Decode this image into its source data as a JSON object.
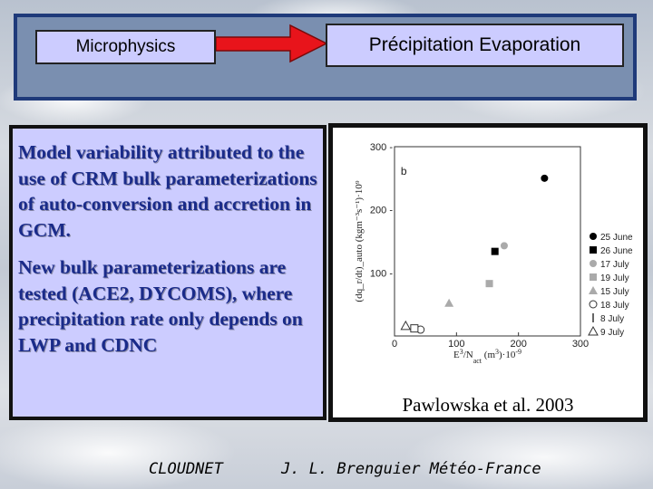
{
  "header": {
    "left_box": "Microphysics",
    "right_box": "Précipitation Evaporation"
  },
  "text_panel": {
    "paragraph1": "Model variability attributed to the use of CRM bulk parameterizations of auto-conversion and accretion in GCM.",
    "paragraph2": "New bulk parameterizations are tested (ACE2, DYCOMS), where precipitation rate only depends on LWP and CDNC"
  },
  "figure": {
    "caption": "Pawlowska et al. 2003",
    "colors": {
      "arrow_fill": "#e8141b",
      "panel_fill": "#ccccff",
      "header_band": "#7a8fb0"
    }
  },
  "chart_data": {
    "type": "scatter",
    "panel_label": "b",
    "xlabel_parts": [
      "E",
      "3",
      "/N",
      "act",
      "  (m",
      "3",
      ")·10",
      "-9"
    ],
    "ylabel_text": "(dq_r/dt)_auto (kgm⁻³s⁻¹)·10⁹",
    "xlim": [
      0,
      300
    ],
    "ylim": [
      0,
      300
    ],
    "xticks": [
      0,
      100,
      200,
      300
    ],
    "yticks": [
      100,
      200,
      300
    ],
    "x_tick_labels": [
      "0",
      "100",
      "200",
      "300"
    ],
    "y_tick_labels": [
      "100 -",
      "200 -",
      "300 -"
    ],
    "series": [
      {
        "name": "25 June",
        "marker": "circle-filled",
        "points": [
          [
            242,
            250
          ]
        ]
      },
      {
        "name": "26 June",
        "marker": "square-filled",
        "points": [
          [
            162,
            134
          ]
        ]
      },
      {
        "name": "17 July",
        "marker": "circle-gray",
        "points": [
          [
            177,
            143
          ]
        ]
      },
      {
        "name": "19 July",
        "marker": "square-gray",
        "points": [
          [
            153,
            83
          ]
        ]
      },
      {
        "name": "15 July",
        "marker": "triangle-gray",
        "points": [
          [
            88,
            52
          ]
        ]
      },
      {
        "name": "18 July",
        "marker": "circle-open",
        "points": [
          [
            42,
            10
          ]
        ]
      },
      {
        "name": "8 July",
        "marker": "bar",
        "points": []
      },
      {
        "name": "9 July",
        "marker": "triangle-open",
        "points": [
          [
            18,
            16
          ]
        ]
      },
      {
        "name": "",
        "marker": "square-open",
        "points": [
          [
            32,
            12
          ]
        ]
      }
    ]
  },
  "footer": {
    "left": "CLOUDNET",
    "right": "J. L. Brenguier Météo-France"
  }
}
